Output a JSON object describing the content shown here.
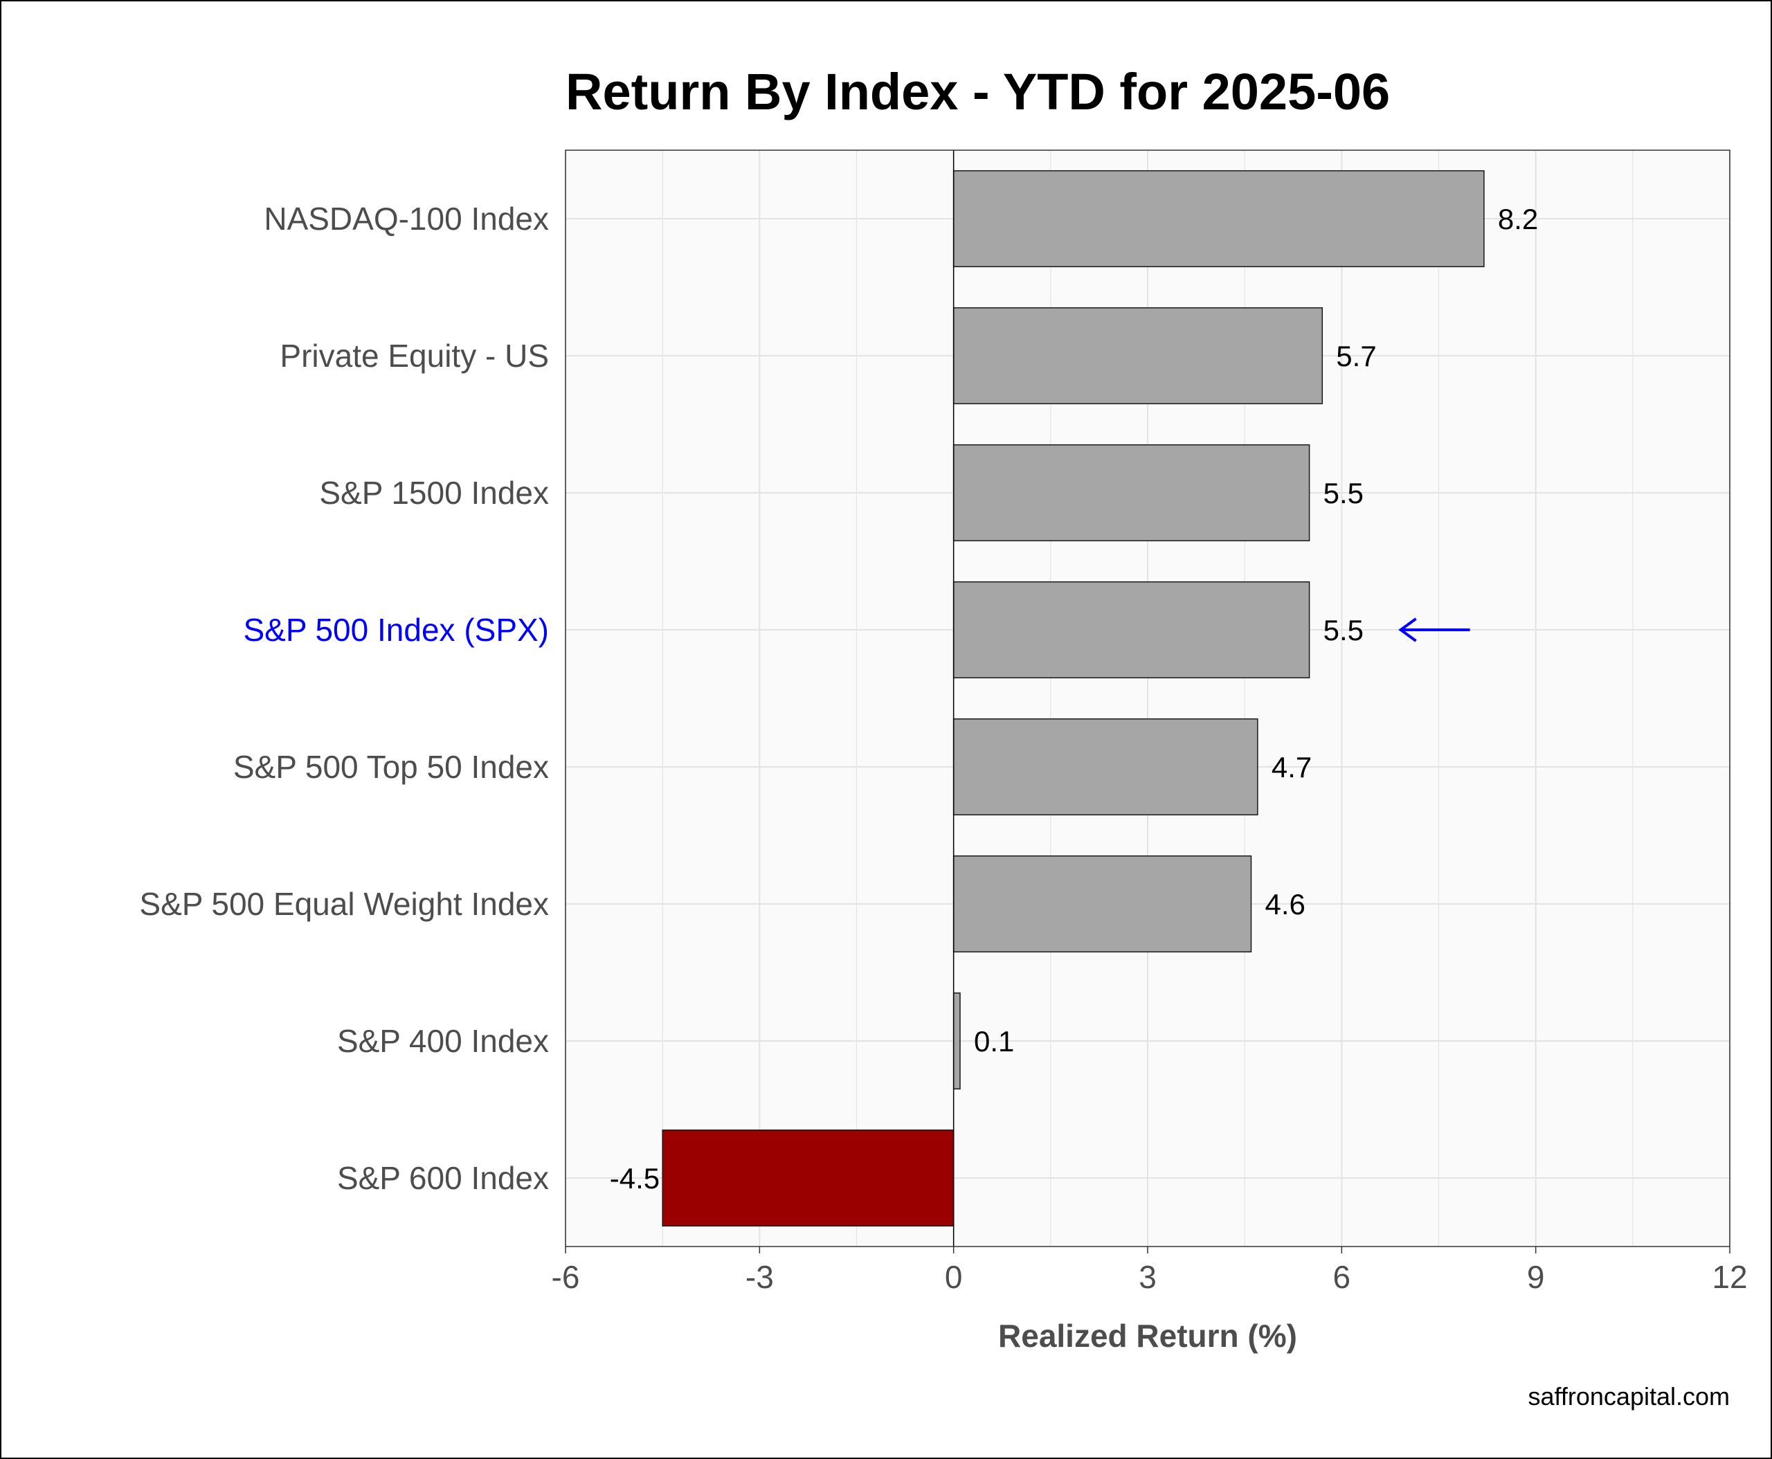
{
  "chart_data": {
    "type": "bar",
    "orientation": "horizontal",
    "title": "Return By Index - YTD for 2025-06",
    "xlabel": "Realized Return (%)",
    "ylabel": "",
    "xlim": [
      -6,
      12
    ],
    "x_ticks": [
      "-6",
      "-3",
      "0",
      "3",
      "6",
      "9",
      "12"
    ],
    "categories": [
      "NASDAQ-100 Index",
      "Private Equity - US",
      "S&P 1500 Index",
      "S&P 500 Index (SPX)",
      "S&P 500 Top 50 Index",
      "S&P 500 Equal Weight Index",
      "S&P 400 Index",
      "S&P 600 Index"
    ],
    "values": [
      8.2,
      5.7,
      5.5,
      5.5,
      4.7,
      4.6,
      0.1,
      -4.5
    ],
    "value_labels": [
      "8.2",
      "5.7",
      "5.5",
      "5.5",
      "4.7",
      "4.6",
      "0.1",
      "-4.5"
    ],
    "highlighted_category": "S&P 500 Index (SPX)",
    "grid": true,
    "legend": "none",
    "colors": {
      "positive_bar": "#a6a6a6",
      "negative_bar": "#9b0000",
      "highlight_label": "#0000ff",
      "arrow": "#0000ff",
      "panel_background": "#fafafa",
      "grid": "#e3e3e3"
    }
  },
  "credit": "saffroncapital.com"
}
